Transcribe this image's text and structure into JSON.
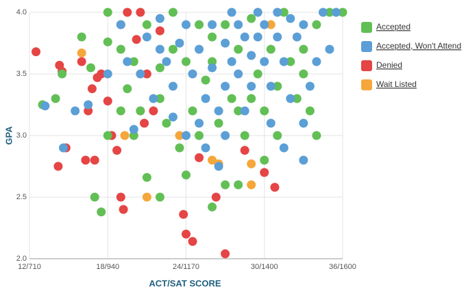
{
  "chart_data": {
    "type": "scatter",
    "x_label": "ACT/SAT SCORE",
    "y_label": "GPA",
    "xlim": [
      12,
      36
    ],
    "ylim": [
      2,
      4
    ],
    "xticks": [
      {
        "value": 12,
        "label": "12/710"
      },
      {
        "value": 18,
        "label": "18/940"
      },
      {
        "value": 24,
        "label": "24/1170"
      },
      {
        "value": 30,
        "label": "30/1400"
      },
      {
        "value": 36,
        "label": "36/1600"
      }
    ],
    "yticks": [
      {
        "value": 2,
        "label": "2.0"
      },
      2.5,
      {
        "value": 3,
        "label": "3.0"
      },
      3.5,
      {
        "value": 4,
        "label": "4.0"
      }
    ],
    "grid": true,
    "legend": "right",
    "series": [
      {
        "name": "Accepted",
        "color": "#62bf55",
        "x": [
          13,
          14,
          14.5,
          16,
          16.7,
          17,
          17.5,
          18,
          18,
          19,
          19.5,
          20,
          20.5,
          21,
          22,
          22,
          22.5,
          23,
          23.5,
          24,
          24.5,
          25,
          25.5,
          26,
          26,
          26.5,
          27,
          27.5,
          28,
          28,
          28.5,
          29,
          29.5,
          30,
          30,
          30.5,
          31,
          31.5,
          32,
          32.5,
          33,
          33.5,
          34,
          34,
          35,
          36,
          25,
          27,
          24,
          23,
          21,
          22,
          29,
          31,
          33,
          26,
          28,
          20,
          19,
          18
        ],
        "y": [
          3.25,
          3.3,
          3.5,
          3.8,
          3.55,
          2.5,
          2.38,
          3.76,
          4.0,
          3.7,
          3.38,
          3.0,
          3.2,
          2.66,
          2.5,
          3.55,
          3.1,
          3.7,
          2.9,
          2.68,
          3.2,
          3.0,
          3.45,
          2.42,
          3.8,
          3.1,
          2.6,
          3.3,
          2.6,
          3.7,
          3.0,
          3.95,
          3.5,
          3.2,
          2.8,
          3.7,
          3.4,
          4.0,
          3.6,
          3.3,
          3.5,
          3.2,
          3.0,
          3.9,
          4.0,
          4.0,
          3.9,
          3.9,
          3.6,
          4.0,
          3.9,
          3.3,
          3.3,
          3.0,
          3.7,
          3.6,
          3.2,
          3.6,
          3.2,
          3.0
        ]
      },
      {
        "name": "Accepted, Won't Attend",
        "color": "#5b9fd6",
        "x": [
          13.2,
          14.6,
          15.5,
          16.5,
          18,
          19,
          20,
          20.5,
          21,
          21.5,
          22,
          22.5,
          23,
          23.5,
          24,
          24.5,
          25,
          25,
          25.5,
          26,
          26,
          26.5,
          27,
          27,
          27.5,
          27.5,
          28,
          28,
          28.5,
          28.5,
          29,
          29,
          29.5,
          29.5,
          30,
          30,
          30.5,
          30.5,
          31,
          31,
          31.5,
          31.5,
          32,
          32,
          32.5,
          33,
          33,
          33,
          33.5,
          34,
          35,
          35.5,
          24,
          25.5,
          26.5,
          27,
          23,
          22,
          19.5,
          34.5
        ],
        "y": [
          3.24,
          2.9,
          3.2,
          3.25,
          3.5,
          3.9,
          3.05,
          3.5,
          3.8,
          3.3,
          3.95,
          3.6,
          3.4,
          3.75,
          3.9,
          3.5,
          3.7,
          3.1,
          3.3,
          3.9,
          3.55,
          3.2,
          3.75,
          3.4,
          4.0,
          3.6,
          3.9,
          3.5,
          3.8,
          3.2,
          3.65,
          3.4,
          4.0,
          3.8,
          3.6,
          3.9,
          3.4,
          3.1,
          3.8,
          4.0,
          3.6,
          2.9,
          3.95,
          3.3,
          3.8,
          3.9,
          3.1,
          2.8,
          3.4,
          3.6,
          3.7,
          4.0,
          3.0,
          2.9,
          2.75,
          3.0,
          3.15,
          3.7,
          3.6,
          4.0
        ]
      },
      {
        "name": "Denied",
        "color": "#e54545",
        "x": [
          12.5,
          14.3,
          14.5,
          14.2,
          14.8,
          16,
          16.5,
          16.8,
          17.2,
          17.5,
          18,
          18.3,
          18.7,
          19,
          19.2,
          19,
          20.2,
          19.5,
          20.5,
          21.5,
          22,
          23.8,
          24,
          24.5,
          25,
          26.3,
          27,
          28.5,
          30,
          30.8,
          21,
          20.8,
          16.3,
          17
        ],
        "y": [
          3.68,
          3.57,
          3.52,
          2.75,
          2.9,
          3.6,
          3.2,
          3.38,
          3.47,
          3.5,
          3.28,
          3.0,
          2.88,
          2.5,
          2.4,
          3.9,
          3.78,
          4.0,
          4.0,
          3.2,
          3.85,
          2.36,
          2.2,
          2.14,
          2.82,
          2.5,
          2.04,
          2.88,
          2.7,
          2.58,
          3.5,
          3.1,
          2.8,
          2.8
        ]
      },
      {
        "name": "Wait Listed",
        "color": "#f5a73b",
        "x": [
          16,
          19.3,
          20.5,
          21,
          26,
          26.5,
          29,
          29,
          30.5,
          23.5
        ],
        "y": [
          3.67,
          3.0,
          3.2,
          2.5,
          2.8,
          2.77,
          2.6,
          2.77,
          3.9,
          3.0
        ]
      }
    ]
  }
}
